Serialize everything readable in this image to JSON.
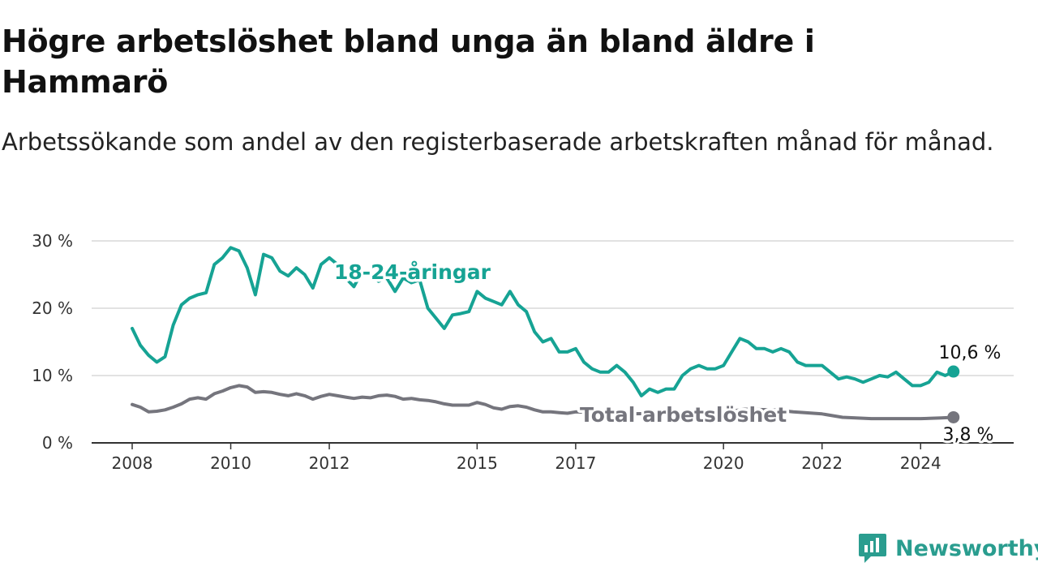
{
  "title": "Högre arbetslöshet bland unga än bland äldre i Hammarö",
  "subtitle": "Arbetssökande som andel av den registerbaserade arbetskraften månad för månad.",
  "logo": {
    "text": "Newsworthy",
    "icon": "newsworthy-chart-bubble-icon"
  },
  "colors": {
    "youth": "#16a394",
    "total": "#75757d",
    "grid": "#d9d9d9",
    "axis": "#333333"
  },
  "chart_data": {
    "type": "line",
    "title": "Högre arbetslöshet bland unga än bland äldre i Hammarö",
    "subtitle": "Arbetssökande som andel av den registerbaserade arbetskraften månad för månad.",
    "xlabel": "",
    "ylabel": "",
    "xlim": [
      "2008-01",
      "2025-01"
    ],
    "ylim": [
      0,
      30
    ],
    "y_ticks": [
      0,
      10,
      20,
      30
    ],
    "y_tick_labels": [
      "0 %",
      "10 %",
      "20 %",
      "30 %"
    ],
    "x_ticks": [
      "2008-01",
      "2010-01",
      "2012-01",
      "2015-01",
      "2017-01",
      "2020-01",
      "2022-01",
      "2024-01"
    ],
    "x_tick_labels": [
      "2008",
      "2010",
      "2012",
      "2015",
      "2017",
      "2020",
      "2022",
      "2024"
    ],
    "grid": true,
    "legend": "inline labels",
    "series": [
      {
        "name": "18-24-åringar",
        "color": "#16a394",
        "end_label": "10,6 %",
        "points": [
          [
            "2008-01",
            17.0
          ],
          [
            "2008-03",
            14.5
          ],
          [
            "2008-05",
            13.0
          ],
          [
            "2008-07",
            12.0
          ],
          [
            "2008-09",
            12.8
          ],
          [
            "2008-11",
            17.5
          ],
          [
            "2009-01",
            20.5
          ],
          [
            "2009-03",
            21.5
          ],
          [
            "2009-05",
            22.0
          ],
          [
            "2009-07",
            22.3
          ],
          [
            "2009-09",
            26.5
          ],
          [
            "2009-11",
            27.5
          ],
          [
            "2010-01",
            29.0
          ],
          [
            "2010-03",
            28.5
          ],
          [
            "2010-05",
            26.0
          ],
          [
            "2010-07",
            22.0
          ],
          [
            "2010-09",
            28.0
          ],
          [
            "2010-11",
            27.5
          ],
          [
            "2011-01",
            25.5
          ],
          [
            "2011-03",
            24.8
          ],
          [
            "2011-05",
            26.0
          ],
          [
            "2011-07",
            25.0
          ],
          [
            "2011-09",
            23.0
          ],
          [
            "2011-11",
            26.5
          ],
          [
            "2012-01",
            27.5
          ],
          [
            "2012-03",
            26.5
          ],
          [
            "2012-05",
            24.5
          ],
          [
            "2012-07",
            23.2
          ],
          [
            "2012-09",
            25.5
          ],
          [
            "2012-11",
            25.0
          ],
          [
            "2013-01",
            24.0
          ],
          [
            "2013-03",
            24.5
          ],
          [
            "2013-05",
            22.5
          ],
          [
            "2013-07",
            24.5
          ],
          [
            "2013-09",
            23.8
          ],
          [
            "2013-11",
            24.2
          ],
          [
            "2014-01",
            20.0
          ],
          [
            "2014-03",
            18.5
          ],
          [
            "2014-05",
            17.0
          ],
          [
            "2014-07",
            19.0
          ],
          [
            "2014-09",
            19.2
          ],
          [
            "2014-11",
            19.5
          ],
          [
            "2015-01",
            22.5
          ],
          [
            "2015-03",
            21.5
          ],
          [
            "2015-05",
            21.0
          ],
          [
            "2015-07",
            20.5
          ],
          [
            "2015-09",
            22.5
          ],
          [
            "2015-11",
            20.5
          ],
          [
            "2016-01",
            19.5
          ],
          [
            "2016-03",
            16.5
          ],
          [
            "2016-05",
            15.0
          ],
          [
            "2016-07",
            15.5
          ],
          [
            "2016-09",
            13.5
          ],
          [
            "2016-11",
            13.5
          ],
          [
            "2017-01",
            14.0
          ],
          [
            "2017-03",
            12.0
          ],
          [
            "2017-05",
            11.0
          ],
          [
            "2017-07",
            10.5
          ],
          [
            "2017-09",
            10.5
          ],
          [
            "2017-11",
            11.5
          ],
          [
            "2018-01",
            10.5
          ],
          [
            "2018-03",
            9.0
          ],
          [
            "2018-05",
            7.0
          ],
          [
            "2018-07",
            8.0
          ],
          [
            "2018-09",
            7.5
          ],
          [
            "2018-11",
            8.0
          ],
          [
            "2019-01",
            8.0
          ],
          [
            "2019-03",
            10.0
          ],
          [
            "2019-05",
            11.0
          ],
          [
            "2019-07",
            11.5
          ],
          [
            "2019-09",
            11.0
          ],
          [
            "2019-11",
            11.0
          ],
          [
            "2020-01",
            11.5
          ],
          [
            "2020-03",
            13.5
          ],
          [
            "2020-05",
            15.5
          ],
          [
            "2020-07",
            15.0
          ],
          [
            "2020-09",
            14.0
          ],
          [
            "2020-11",
            14.0
          ],
          [
            "2021-01",
            13.5
          ],
          [
            "2021-03",
            14.0
          ],
          [
            "2021-05",
            13.5
          ],
          [
            "2021-07",
            12.0
          ],
          [
            "2021-09",
            11.5
          ],
          [
            "2021-11",
            11.5
          ],
          [
            "2022-01",
            11.5
          ],
          [
            "2022-03",
            10.5
          ],
          [
            "2022-05",
            9.5
          ],
          [
            "2022-07",
            9.8
          ],
          [
            "2022-09",
            9.5
          ],
          [
            "2022-11",
            9.0
          ],
          [
            "2023-01",
            9.5
          ],
          [
            "2023-03",
            10.0
          ],
          [
            "2023-05",
            9.8
          ],
          [
            "2023-07",
            10.5
          ],
          [
            "2023-09",
            9.5
          ],
          [
            "2023-11",
            8.5
          ],
          [
            "2024-01",
            8.5
          ],
          [
            "2024-03",
            9.0
          ],
          [
            "2024-05",
            10.5
          ],
          [
            "2024-07",
            10.0
          ],
          [
            "2024-09",
            10.6
          ]
        ]
      },
      {
        "name": "Total arbetslöshet",
        "color": "#75757d",
        "end_label": "3,8 %",
        "points": [
          [
            "2008-01",
            5.7
          ],
          [
            "2008-03",
            5.3
          ],
          [
            "2008-05",
            4.6
          ],
          [
            "2008-07",
            4.7
          ],
          [
            "2008-09",
            4.9
          ],
          [
            "2008-11",
            5.3
          ],
          [
            "2009-01",
            5.8
          ],
          [
            "2009-03",
            6.5
          ],
          [
            "2009-05",
            6.7
          ],
          [
            "2009-07",
            6.5
          ],
          [
            "2009-09",
            7.3
          ],
          [
            "2009-11",
            7.7
          ],
          [
            "2010-01",
            8.2
          ],
          [
            "2010-03",
            8.5
          ],
          [
            "2010-05",
            8.3
          ],
          [
            "2010-07",
            7.5
          ],
          [
            "2010-09",
            7.6
          ],
          [
            "2010-11",
            7.5
          ],
          [
            "2011-01",
            7.2
          ],
          [
            "2011-03",
            7.0
          ],
          [
            "2011-05",
            7.3
          ],
          [
            "2011-07",
            7.0
          ],
          [
            "2011-09",
            6.5
          ],
          [
            "2011-11",
            6.9
          ],
          [
            "2012-01",
            7.2
          ],
          [
            "2012-03",
            7.0
          ],
          [
            "2012-05",
            6.8
          ],
          [
            "2012-07",
            6.6
          ],
          [
            "2012-09",
            6.8
          ],
          [
            "2012-11",
            6.7
          ],
          [
            "2013-01",
            7.0
          ],
          [
            "2013-03",
            7.1
          ],
          [
            "2013-05",
            6.9
          ],
          [
            "2013-07",
            6.5
          ],
          [
            "2013-09",
            6.6
          ],
          [
            "2013-11",
            6.4
          ],
          [
            "2014-01",
            6.3
          ],
          [
            "2014-03",
            6.1
          ],
          [
            "2014-05",
            5.8
          ],
          [
            "2014-07",
            5.6
          ],
          [
            "2014-09",
            5.6
          ],
          [
            "2014-11",
            5.6
          ],
          [
            "2015-01",
            6.0
          ],
          [
            "2015-03",
            5.7
          ],
          [
            "2015-05",
            5.2
          ],
          [
            "2015-07",
            5.0
          ],
          [
            "2015-09",
            5.4
          ],
          [
            "2015-11",
            5.5
          ],
          [
            "2016-01",
            5.3
          ],
          [
            "2016-03",
            4.9
          ],
          [
            "2016-05",
            4.6
          ],
          [
            "2016-07",
            4.6
          ],
          [
            "2016-09",
            4.5
          ],
          [
            "2016-11",
            4.4
          ],
          [
            "2017-01",
            4.6
          ],
          [
            "2017-06",
            4.5
          ],
          [
            "2018-01",
            4.3
          ],
          [
            "2019-01",
            4.4
          ],
          [
            "2020-01",
            4.5
          ],
          [
            "2020-06",
            5.0
          ],
          [
            "2021-01",
            4.9
          ],
          [
            "2021-06",
            4.6
          ],
          [
            "2022-01",
            4.3
          ],
          [
            "2022-06",
            3.8
          ],
          [
            "2023-01",
            3.6
          ],
          [
            "2023-06",
            3.6
          ],
          [
            "2024-01",
            3.6
          ],
          [
            "2024-06",
            3.7
          ],
          [
            "2024-09",
            3.8
          ]
        ]
      }
    ]
  }
}
